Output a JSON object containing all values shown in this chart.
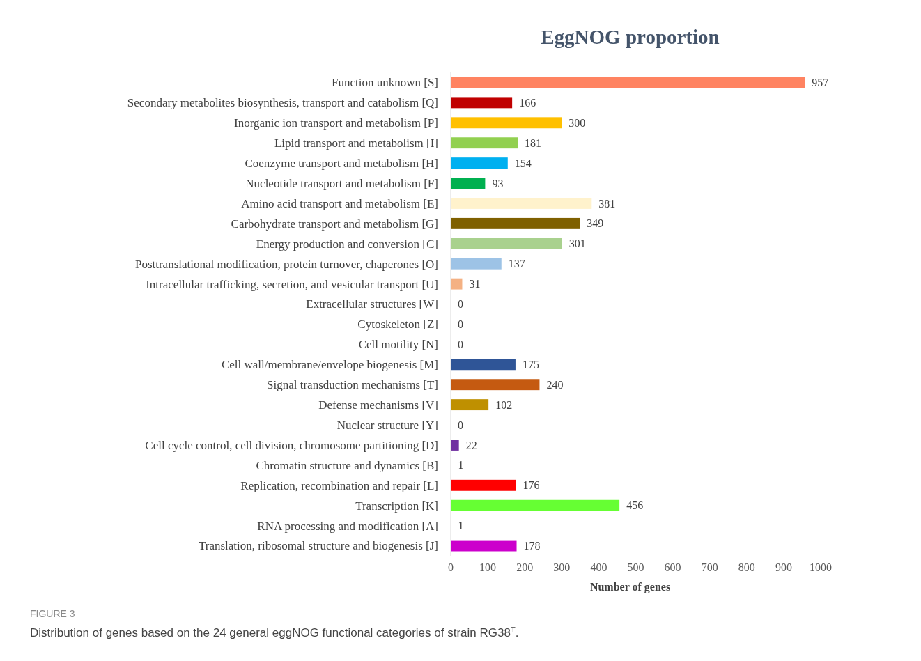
{
  "chart_data": {
    "type": "bar",
    "orientation": "horizontal",
    "title": "EggNOG proportion",
    "xlabel": "Number of genes",
    "categories": [
      "Function unknown [S]",
      "Secondary metabolites biosynthesis, transport and catabolism [Q]",
      "Inorganic ion transport and metabolism [P]",
      "Lipid transport and metabolism [I]",
      "Coenzyme transport and metabolism [H]",
      "Nucleotide transport and metabolism [F]",
      "Amino acid transport and metabolism [E]",
      "Carbohydrate transport and metabolism [G]",
      "Energy production and conversion [C]",
      "Posttranslational modification, protein turnover, chaperones [O]",
      "Intracellular trafficking, secretion, and vesicular transport [U]",
      "Extracellular structures [W]",
      "Cytoskeleton [Z]",
      "Cell motility [N]",
      "Cell wall/membrane/envelope biogenesis [M]",
      "Signal transduction mechanisms [T]",
      "Defense mechanisms [V]",
      "Nuclear structure [Y]",
      "Cell cycle control, cell division, chromosome partitioning [D]",
      "Chromatin structure and dynamics [B]",
      "Replication, recombination and repair [L]",
      "Transcription [K]",
      "RNA processing and modification [A]",
      "Translation, ribosomal structure and biogenesis [J]"
    ],
    "values": [
      957,
      166,
      300,
      181,
      154,
      93,
      381,
      349,
      301,
      137,
      31,
      0,
      0,
      0,
      175,
      240,
      102,
      0,
      22,
      1,
      176,
      456,
      1,
      178
    ],
    "colors": [
      "#ff8361",
      "#c00000",
      "#ffc000",
      "#92d050",
      "#00b0f0",
      "#00b050",
      "#fff2cc",
      "#7f6000",
      "#a9d18e",
      "#9dc3e6",
      "#f4b183",
      "#a5a5a5",
      "#a5a5a5",
      "#a5a5a5",
      "#2f5597",
      "#c55a11",
      "#bf9000",
      "#a5a5a5",
      "#7030a0",
      "#4472c4",
      "#ff0000",
      "#66ff33",
      "#264478",
      "#cc00cc"
    ],
    "xlim": [
      0,
      1000
    ],
    "xticks": [
      0,
      100,
      200,
      300,
      400,
      500,
      600,
      700,
      800,
      900,
      1000
    ],
    "data_labels": true,
    "annotations": [
      "FIGURE 3",
      "Distribution of genes based on the 24 general eggNOG functional categories of strain RG38$^{T}$."
    ]
  }
}
